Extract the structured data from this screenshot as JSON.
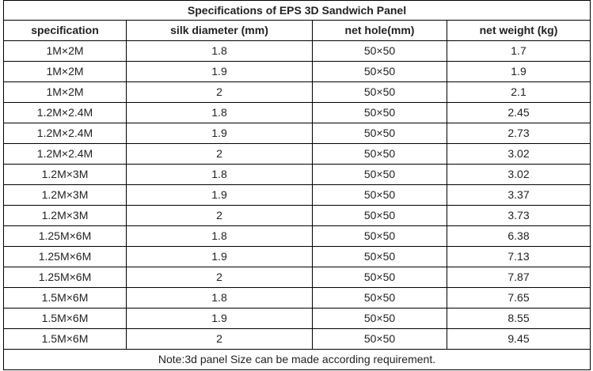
{
  "table": {
    "title": "Specifications of EPS 3D Sandwich Panel",
    "headers": [
      "specification",
      "silk diameter (mm)",
      "net hole(mm)",
      "net weight (kg)"
    ],
    "rows": [
      [
        "1M×2M",
        "1.8",
        "50×50",
        "1.7"
      ],
      [
        "1M×2M",
        "1.9",
        "50×50",
        "1.9"
      ],
      [
        "1M×2M",
        "2",
        "50×50",
        "2.1"
      ],
      [
        "1.2M×2.4M",
        "1.8",
        "50×50",
        "2.45"
      ],
      [
        "1.2M×2.4M",
        "1.9",
        "50×50",
        "2.73"
      ],
      [
        "1.2M×2.4M",
        "2",
        "50×50",
        "3.02"
      ],
      [
        "1.2M×3M",
        "1.8",
        "50×50",
        "3.02"
      ],
      [
        "1.2M×3M",
        "1.9",
        "50×50",
        "3.37"
      ],
      [
        "1.2M×3M",
        "2",
        "50×50",
        "3.73"
      ],
      [
        "1.25M×6M",
        "1.8",
        "50×50",
        "6.38"
      ],
      [
        "1.25M×6M",
        "1.9",
        "50×50",
        "7.13"
      ],
      [
        "1.25M×6M",
        "2",
        "50×50",
        "7.87"
      ],
      [
        "1.5M×6M",
        "1.8",
        "50×50",
        "7.65"
      ],
      [
        "1.5M×6M",
        "1.9",
        "50×50",
        "8.55"
      ],
      [
        "1.5M×6M",
        "2",
        "50×50",
        "9.45"
      ]
    ],
    "note": "Note:3d panel Size can be made according requirement."
  }
}
